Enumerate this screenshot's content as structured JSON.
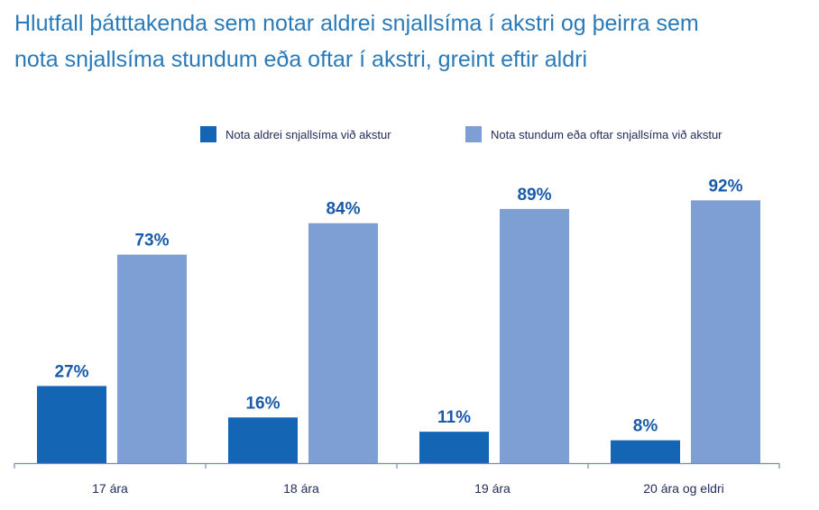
{
  "chart_data": {
    "type": "bar",
    "title_lines": [
      "Hlutfall þátttakenda sem notar aldrei snjallsíma í akstri og þeirra sem",
      "nota snjallsíma stundum eða oftar í akstri, greint eftir aldri"
    ],
    "categories": [
      "17 ára",
      "18 ára",
      "19 ára",
      "20 ára og eldri"
    ],
    "series": [
      {
        "name": "Nota aldrei snjallsíma við akstur",
        "values": [
          27,
          16,
          11,
          8
        ],
        "labels": [
          "27%",
          "16%",
          "11%",
          "8%"
        ],
        "color": "#1565b5"
      },
      {
        "name": "Nota stundum eða oftar snjallsíma við akstur",
        "values": [
          73,
          84,
          89,
          92
        ],
        "labels": [
          "73%",
          "84%",
          "89%",
          "92%"
        ],
        "color": "#7e9fd4"
      }
    ],
    "ylim": [
      0,
      100
    ],
    "legend_position": "top-right",
    "grid": false,
    "label_color": "#1a5aa8",
    "axis_color": "#7a8ab8"
  }
}
